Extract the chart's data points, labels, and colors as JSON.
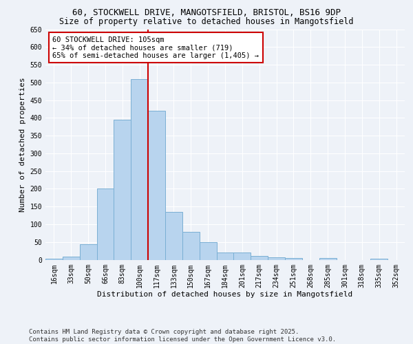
{
  "title_line1": "60, STOCKWELL DRIVE, MANGOTSFIELD, BRISTOL, BS16 9DP",
  "title_line2": "Size of property relative to detached houses in Mangotsfield",
  "xlabel": "Distribution of detached houses by size in Mangotsfield",
  "ylabel": "Number of detached properties",
  "categories": [
    "16sqm",
    "33sqm",
    "50sqm",
    "66sqm",
    "83sqm",
    "100sqm",
    "117sqm",
    "133sqm",
    "150sqm",
    "167sqm",
    "184sqm",
    "201sqm",
    "217sqm",
    "234sqm",
    "251sqm",
    "268sqm",
    "285sqm",
    "301sqm",
    "318sqm",
    "335sqm",
    "352sqm"
  ],
  "values": [
    2,
    8,
    43,
    200,
    395,
    510,
    420,
    135,
    78,
    50,
    20,
    20,
    10,
    6,
    5,
    0,
    4,
    0,
    0,
    2,
    0
  ],
  "bar_color": "#b8d4ee",
  "bar_edge_color": "#7aafd4",
  "vline_x_index": 5,
  "vline_color": "#cc0000",
  "annotation_text": "60 STOCKWELL DRIVE: 105sqm\n← 34% of detached houses are smaller (719)\n65% of semi-detached houses are larger (1,405) →",
  "annotation_box_color": "#ffffff",
  "annotation_box_edge_color": "#cc0000",
  "ylim": [
    0,
    650
  ],
  "yticks": [
    0,
    50,
    100,
    150,
    200,
    250,
    300,
    350,
    400,
    450,
    500,
    550,
    600,
    650
  ],
  "footer": "Contains HM Land Registry data © Crown copyright and database right 2025.\nContains public sector information licensed under the Open Government Licence v3.0.",
  "bg_color": "#eef2f8",
  "grid_color": "#ffffff",
  "title_fontsize": 9,
  "subtitle_fontsize": 8.5,
  "label_fontsize": 8,
  "tick_fontsize": 7,
  "annotation_fontsize": 7.5,
  "footer_fontsize": 6.5
}
